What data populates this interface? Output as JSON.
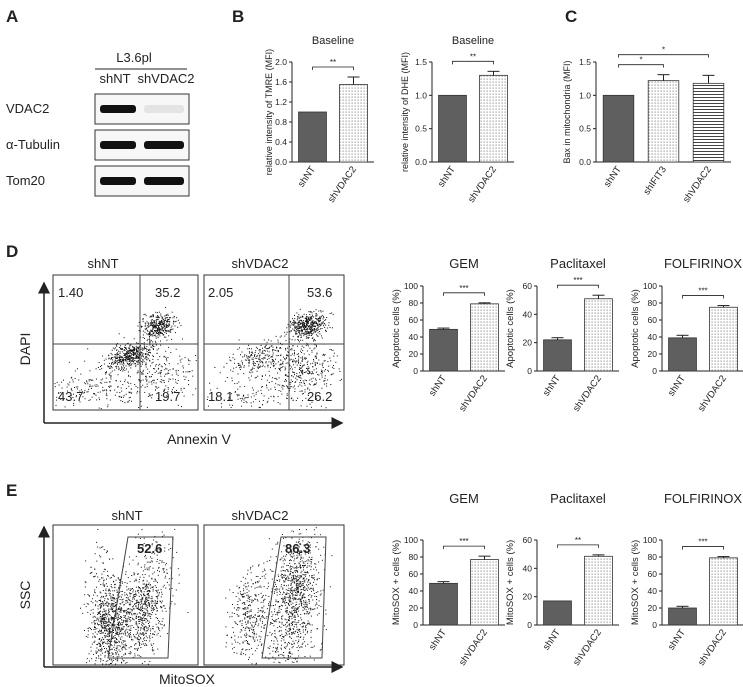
{
  "panel_labels": {
    "A": "A",
    "B": "B",
    "C": "C",
    "D": "D",
    "E": "E"
  },
  "western_blot": {
    "cell_line": "L3.6pl",
    "lanes": [
      "shNT",
      "shVDAC2"
    ],
    "rows": [
      {
        "label": "VDAC2",
        "band_intensity": [
          1.0,
          0.08
        ]
      },
      {
        "label": "α-Tubulin",
        "band_intensity": [
          1.0,
          1.0
        ]
      },
      {
        "label": "Tom20",
        "band_intensity": [
          1.0,
          1.0
        ]
      }
    ]
  },
  "flow_D": {
    "xlabel": "Annexin V",
    "ylabel": "DAPI",
    "plots": [
      {
        "title": "shNT",
        "ul": "1.40",
        "ur": "35.2",
        "ll": "43.7",
        "lr": "19.7"
      },
      {
        "title": "shVDAC2",
        "ul": "2.05",
        "ur": "53.6",
        "ll": "18.1",
        "lr": "26.2"
      }
    ]
  },
  "flow_E": {
    "xlabel": "MitoSOX",
    "ylabel": "SSC",
    "plots": [
      {
        "title": "shNT",
        "gate": "52.6"
      },
      {
        "title": "shVDAC2",
        "gate": "86.3"
      }
    ]
  },
  "colors": {
    "bar_dark": "#5f5f5f",
    "bar_edge": "#333333",
    "text": "#222222"
  },
  "chart_data": [
    {
      "id": "B1",
      "type": "bar",
      "title": "Baseline",
      "ylabel": "relative intensity of TMRE (MFI)",
      "categories": [
        "shNT",
        "shVDAC2"
      ],
      "values": [
        1.0,
        1.55
      ],
      "errors": [
        0,
        0.15
      ],
      "ylim": [
        0,
        2.0
      ],
      "yticks": [
        "0.0",
        "0.4",
        "0.8",
        "1.2",
        "1.6",
        "2.0"
      ],
      "yticks_num": [
        0,
        0.4,
        0.8,
        1.2,
        1.6,
        2.0
      ],
      "fills": [
        "solid",
        "dots"
      ],
      "sig": [
        {
          "from": 0,
          "to": 1,
          "label": "**"
        }
      ]
    },
    {
      "id": "B2",
      "type": "bar",
      "title": "Baseline",
      "ylabel": "relative intensity of DHE (MFI)",
      "categories": [
        "shNT",
        "shVDAC2"
      ],
      "values": [
        1.0,
        1.3
      ],
      "errors": [
        0,
        0.06
      ],
      "ylim": [
        0,
        1.5
      ],
      "yticks": [
        "0.0",
        "0.5",
        "1.0",
        "1.5"
      ],
      "yticks_num": [
        0,
        0.5,
        1.0,
        1.5
      ],
      "fills": [
        "solid",
        "dots"
      ],
      "sig": [
        {
          "from": 0,
          "to": 1,
          "label": "**"
        }
      ]
    },
    {
      "id": "C",
      "type": "bar",
      "title": "",
      "ylabel": "Bax in mitochondria (MFI)",
      "categories": [
        "shNT",
        "shIFIT3",
        "shVDAC2"
      ],
      "values": [
        1.0,
        1.22,
        1.18
      ],
      "errors": [
        0,
        0.09,
        0.12
      ],
      "ylim": [
        0,
        1.5
      ],
      "yticks": [
        "0.0",
        "0.5",
        "1.0",
        "1.5"
      ],
      "yticks_num": [
        0,
        0.5,
        1.0,
        1.5
      ],
      "fills": [
        "solid",
        "dots",
        "hlines"
      ],
      "sig": [
        {
          "from": 0,
          "to": 1,
          "label": "*"
        },
        {
          "from": 0,
          "to": 2,
          "label": "*"
        }
      ]
    },
    {
      "id": "D1",
      "type": "bar",
      "title": "GEM",
      "ylabel": "Apoptotic cells (%)",
      "categories": [
        "shNT",
        "shVDAC2"
      ],
      "values": [
        49,
        79
      ],
      "errors": [
        1.5,
        1.2
      ],
      "ylim": [
        0,
        100
      ],
      "yticks": [
        "0",
        "20",
        "40",
        "60",
        "80",
        "100"
      ],
      "yticks_num": [
        0,
        20,
        40,
        60,
        80,
        100
      ],
      "fills": [
        "solid",
        "dots"
      ],
      "sig": [
        {
          "from": 0,
          "to": 1,
          "label": "***"
        }
      ]
    },
    {
      "id": "D2",
      "type": "bar",
      "title": "Paclitaxel",
      "ylabel": "Apoptotic cells (%)",
      "categories": [
        "shNT",
        "shVDAC2"
      ],
      "values": [
        22,
        51
      ],
      "errors": [
        1.5,
        2.5
      ],
      "ylim": [
        0,
        60
      ],
      "yticks": [
        "0",
        "20",
        "40",
        "60"
      ],
      "yticks_num": [
        0,
        20,
        40,
        60
      ],
      "fills": [
        "solid",
        "dots"
      ],
      "sig": [
        {
          "from": 0,
          "to": 1,
          "label": "***"
        }
      ]
    },
    {
      "id": "D3",
      "type": "bar",
      "title": "FOLFIRINOX",
      "ylabel": "Apoptotic cells (%)",
      "categories": [
        "shNT",
        "shVDAC2"
      ],
      "values": [
        39,
        75
      ],
      "errors": [
        3,
        2
      ],
      "ylim": [
        0,
        100
      ],
      "yticks": [
        "0",
        "20",
        "40",
        "60",
        "80",
        "100"
      ],
      "yticks_num": [
        0,
        20,
        40,
        60,
        80,
        100
      ],
      "fills": [
        "solid",
        "dots"
      ],
      "sig": [
        {
          "from": 0,
          "to": 1,
          "label": "***"
        }
      ]
    },
    {
      "id": "E1",
      "type": "bar",
      "title": "GEM",
      "ylabel": "MitoSOX + cells (%)",
      "categories": [
        "shNT",
        "shVDAC2"
      ],
      "values": [
        49,
        77
      ],
      "errors": [
        2,
        4
      ],
      "ylim": [
        0,
        100
      ],
      "yticks": [
        "0",
        "20",
        "40",
        "60",
        "80",
        "100"
      ],
      "yticks_num": [
        0,
        20,
        40,
        60,
        80,
        100
      ],
      "fills": [
        "solid",
        "dots"
      ],
      "sig": [
        {
          "from": 0,
          "to": 1,
          "label": "***"
        }
      ]
    },
    {
      "id": "E2",
      "type": "bar",
      "title": "Paclitaxel",
      "ylabel": "MitoSOX + cells (%)",
      "categories": [
        "shNT",
        "shVDAC2"
      ],
      "values": [
        17,
        48.5
      ],
      "errors": [
        0,
        1
      ],
      "ylim": [
        0,
        60
      ],
      "yticks": [
        "0",
        "20",
        "40",
        "60"
      ],
      "yticks_num": [
        0,
        20,
        40,
        60
      ],
      "fills": [
        "solid",
        "dots"
      ],
      "sig": [
        {
          "from": 0,
          "to": 1,
          "label": "**"
        }
      ]
    },
    {
      "id": "E3",
      "type": "bar",
      "title": "FOLFIRINOX",
      "ylabel": "MitoSOX + cells (%)",
      "categories": [
        "shNT",
        "shVDAC2"
      ],
      "values": [
        20,
        79
      ],
      "errors": [
        2,
        1.5
      ],
      "ylim": [
        0,
        100
      ],
      "yticks": [
        "0",
        "20",
        "40",
        "60",
        "80",
        "100"
      ],
      "yticks_num": [
        0,
        20,
        40,
        60,
        80,
        100
      ],
      "fills": [
        "solid",
        "dots"
      ],
      "sig": [
        {
          "from": 0,
          "to": 1,
          "label": "***"
        }
      ]
    }
  ]
}
